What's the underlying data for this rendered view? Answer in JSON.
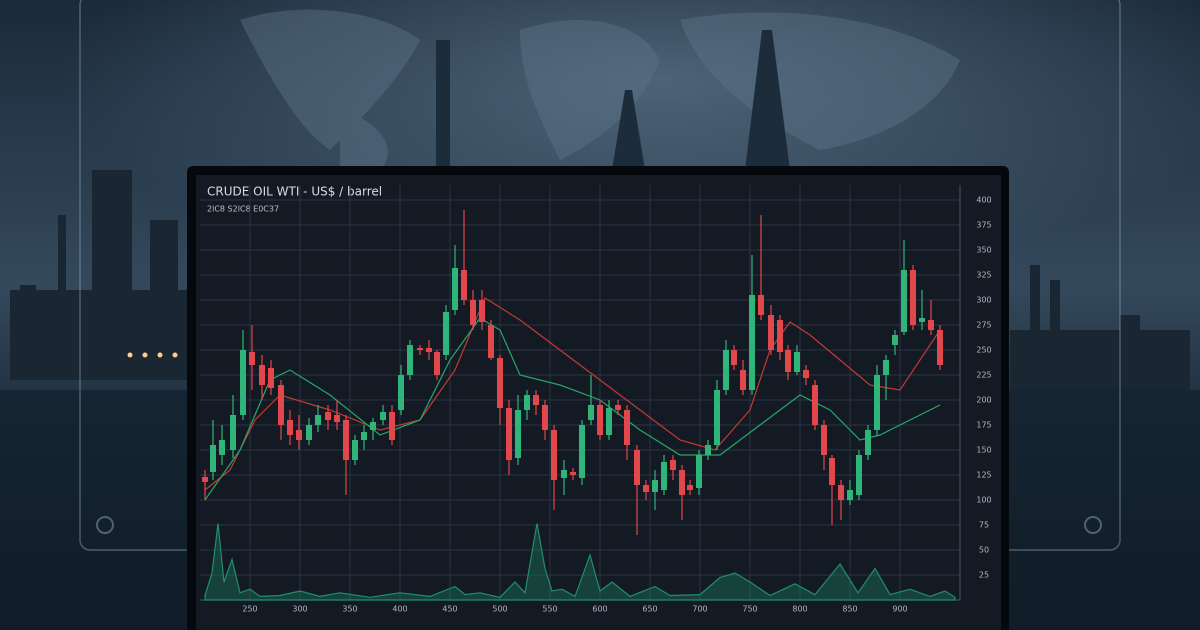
{
  "chart_data": {
    "type": "candlestick",
    "title": "CRUDE OIL WTI - US$ / barrel",
    "subtitle": "2lC8 S2lC8 E0C37",
    "x": [
      205,
      213,
      222,
      233,
      243,
      252,
      262,
      271,
      281,
      290,
      299,
      309,
      318,
      328,
      337,
      346,
      355,
      364,
      373,
      383,
      392,
      401,
      410,
      420,
      429,
      437,
      446,
      455,
      464,
      473,
      482,
      491,
      500,
      509,
      518,
      527,
      536,
      545,
      554,
      564,
      573,
      582,
      591,
      600,
      609,
      618,
      627,
      637,
      646,
      655,
      664,
      673,
      682,
      690,
      699,
      708,
      717,
      726,
      734,
      743,
      752,
      761,
      771,
      780,
      788,
      797,
      806,
      815,
      824,
      832,
      841,
      850,
      859,
      868,
      877,
      886,
      895,
      904,
      913,
      922,
      931,
      940
    ],
    "open": [
      123,
      128,
      145,
      150,
      185,
      248,
      235,
      232,
      215,
      180,
      170,
      160,
      175,
      188,
      185,
      180,
      140,
      160,
      170,
      180,
      188,
      190,
      225,
      252,
      252,
      248,
      245,
      290,
      330,
      300,
      300,
      275,
      242,
      192,
      142,
      190,
      205,
      195,
      170,
      122,
      128,
      122,
      180,
      195,
      165,
      195,
      190,
      150,
      115,
      108,
      110,
      140,
      130,
      115,
      112,
      145,
      155,
      210,
      250,
      230,
      210,
      305,
      285,
      280,
      250,
      228,
      230,
      215,
      175,
      142,
      115,
      100,
      105,
      145,
      170,
      225,
      255,
      268,
      330,
      278,
      280,
      270
    ],
    "high": [
      130,
      180,
      175,
      205,
      270,
      275,
      245,
      240,
      220,
      190,
      185,
      182,
      195,
      195,
      200,
      185,
      165,
      175,
      182,
      195,
      195,
      235,
      260,
      255,
      260,
      250,
      295,
      355,
      390,
      310,
      310,
      280,
      245,
      200,
      205,
      210,
      210,
      200,
      175,
      140,
      132,
      180,
      225,
      200,
      200,
      200,
      195,
      155,
      120,
      130,
      145,
      145,
      135,
      120,
      150,
      160,
      220,
      260,
      255,
      240,
      345,
      385,
      295,
      285,
      255,
      255,
      235,
      220,
      180,
      145,
      120,
      120,
      150,
      175,
      235,
      245,
      270,
      360,
      335,
      310,
      300,
      275
    ],
    "low": [
      100,
      120,
      135,
      142,
      180,
      210,
      200,
      205,
      160,
      155,
      150,
      155,
      168,
      170,
      170,
      105,
      135,
      150,
      160,
      175,
      155,
      185,
      220,
      245,
      240,
      220,
      240,
      285,
      295,
      270,
      270,
      240,
      175,
      125,
      135,
      180,
      185,
      160,
      90,
      105,
      120,
      115,
      175,
      160,
      160,
      185,
      140,
      65,
      100,
      90,
      105,
      120,
      80,
      105,
      105,
      140,
      150,
      205,
      230,
      205,
      205,
      280,
      245,
      240,
      220,
      225,
      215,
      170,
      130,
      75,
      80,
      95,
      100,
      140,
      165,
      200,
      245,
      265,
      270,
      270,
      265,
      230
    ],
    "close": [
      118,
      155,
      160,
      185,
      250,
      235,
      215,
      212,
      175,
      165,
      160,
      175,
      185,
      180,
      178,
      140,
      160,
      168,
      178,
      188,
      160,
      225,
      255,
      250,
      248,
      225,
      288,
      332,
      300,
      275,
      278,
      242,
      192,
      140,
      190,
      205,
      195,
      170,
      120,
      130,
      125,
      175,
      195,
      165,
      192,
      190,
      155,
      115,
      108,
      120,
      138,
      130,
      105,
      110,
      145,
      155,
      210,
      250,
      235,
      210,
      305,
      285,
      250,
      248,
      228,
      248,
      222,
      175,
      145,
      115,
      100,
      110,
      145,
      170,
      225,
      240,
      265,
      330,
      275,
      282,
      270,
      235
    ],
    "up_color": "#2fb57a",
    "down_color": "#e2474b",
    "lines": [
      {
        "color": "#c43a35",
        "x": [
          205,
          230,
          255,
          280,
          330,
          380,
          420,
          455,
          485,
          520,
          560,
          600,
          640,
          680,
          715,
          750,
          770,
          790,
          810,
          840,
          870,
          900,
          940
        ],
        "values": [
          110,
          130,
          180,
          205,
          190,
          170,
          180,
          230,
          302,
          280,
          250,
          220,
          190,
          160,
          150,
          190,
          250,
          278,
          265,
          240,
          215,
          210,
          270
        ]
      },
      {
        "color": "#25a86a",
        "x": [
          205,
          240,
          270,
          290,
          330,
          380,
          420,
          450,
          480,
          500,
          520,
          560,
          600,
          640,
          680,
          720,
          760,
          800,
          830,
          860,
          880,
          910,
          940
        ],
        "values": [
          100,
          150,
          220,
          230,
          205,
          165,
          180,
          240,
          282,
          270,
          225,
          215,
          200,
          170,
          145,
          145,
          175,
          205,
          190,
          160,
          165,
          180,
          195
        ]
      }
    ],
    "volume": {
      "color": "#1f8f6a",
      "y2lim": [
        0,
        100
      ],
      "x": [
        205,
        212,
        218,
        224,
        232,
        240,
        250,
        260,
        280,
        300,
        320,
        340,
        370,
        400,
        430,
        455,
        465,
        480,
        500,
        515,
        525,
        537,
        545,
        552,
        562,
        575,
        590,
        600,
        612,
        630,
        655,
        670,
        700,
        720,
        735,
        750,
        770,
        795,
        815,
        840,
        858,
        875,
        890,
        910,
        930,
        945,
        955
      ],
      "values": [
        5,
        30,
        85,
        20,
        45,
        8,
        12,
        4,
        5,
        10,
        4,
        8,
        3,
        8,
        4,
        15,
        6,
        8,
        3,
        20,
        8,
        85,
        35,
        10,
        12,
        4,
        50,
        10,
        20,
        4,
        15,
        5,
        6,
        25,
        30,
        20,
        5,
        18,
        6,
        40,
        8,
        35,
        6,
        12,
        4,
        10,
        3
      ]
    },
    "xlim": [
      200,
      960
    ],
    "xticks": [
      250,
      300,
      350,
      400,
      450,
      500,
      550,
      600,
      650,
      700,
      750,
      800,
      850,
      900
    ],
    "ylim": [
      0,
      415
    ],
    "yticks": [
      25,
      50,
      75,
      100,
      125,
      150,
      175,
      200,
      225,
      250,
      275,
      300,
      325,
      350,
      375,
      400
    ],
    "grid": true
  }
}
